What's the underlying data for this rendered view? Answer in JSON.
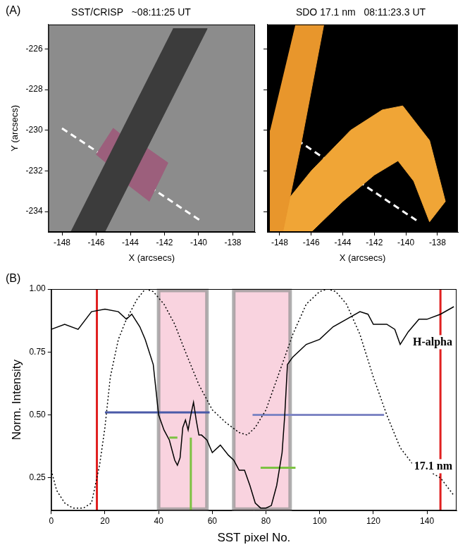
{
  "chart_data": [
    {
      "type": "image",
      "panel": "(A)",
      "title": "SST/CRISP   ~08:11:25 UT",
      "xlabel": "X (arcsecs)",
      "ylabel": "Y (arcsecs)",
      "color": "#8c8c8c",
      "xlim": [
        -148.8,
        -136.7
      ],
      "ylim": [
        -235,
        -224.8
      ],
      "xticks": [
        -148,
        -146,
        -144,
        -142,
        -140,
        -138
      ],
      "yticks": [
        -234,
        -232,
        -230,
        -228,
        -226
      ],
      "series": [
        {
          "type": "area",
          "color": "#3c3c3c",
          "x": [
            -147.5,
            -145.5,
            -139.5,
            -141.5
          ],
          "values": [
            -235,
            -235,
            -225,
            -225
          ]
        },
        {
          "type": "area",
          "color": "#9c5f7c",
          "x": [
            -146.0,
            -145.0,
            -143.4,
            -144.3
          ],
          "values": [
            -231.2,
            -229.9,
            -231.0,
            -232.4
          ]
        },
        {
          "type": "area",
          "color": "#9c5f7c",
          "x": [
            -144.6,
            -143.5,
            -141.8,
            -142.9
          ],
          "values": [
            -232.4,
            -230.6,
            -231.6,
            -233.5
          ]
        },
        {
          "type": "line",
          "line_style": "dashed",
          "color": "#ffffff",
          "x": [
            -148,
            -139.8
          ],
          "values": [
            -229.9,
            -234.5
          ]
        }
      ]
    },
    {
      "type": "image",
      "title": "SDO 17.1 nm   08:11:23.3 UT",
      "xlabel": "X (arcsecs)",
      "color": "#000000",
      "tick_labels": "x",
      "xlim": [
        -148.8,
        -136.7
      ],
      "ylim": [
        -235,
        -224.8
      ],
      "xticks": [
        -148,
        -146,
        -144,
        -142,
        -140,
        -138
      ],
      "yticks": [
        -234,
        -232,
        -230,
        -228,
        -226
      ],
      "series": [
        {
          "type": "area",
          "color": "#e8962c",
          "x": [
            -147.0,
            -145.2,
            -146.6,
            -147.8,
            -148.6,
            -148.6
          ],
          "values": [
            -224.8,
            -224.8,
            -230.5,
            -235,
            -235,
            -230
          ]
        },
        {
          "type": "area",
          "color": "#f0a536",
          "x": [
            -148.6,
            -146,
            -143.5,
            -141.5,
            -140.2,
            -138.5,
            -137.5,
            -138.5,
            -139.5,
            -140.5,
            -142,
            -144,
            -146,
            -148.6
          ],
          "values": [
            -234.5,
            -232,
            -230,
            -229,
            -228.8,
            -230.5,
            -233.5,
            -234.5,
            -232.5,
            -231.5,
            -232.2,
            -233.5,
            -235,
            -235
          ]
        },
        {
          "type": "line",
          "line_style": "dashed",
          "color": "#ffffff",
          "x": [
            -148,
            -139.2
          ],
          "values": [
            -229.9,
            -234.5
          ]
        }
      ]
    },
    {
      "type": "line",
      "panel": "(B)",
      "xlabel": "SST pixel No.",
      "ylabel": "Norm. Intensity",
      "xlim": [
        0,
        151
      ],
      "ylim": [
        0.12,
        1.0
      ],
      "xticks": [
        0,
        20,
        40,
        60,
        80,
        100,
        120,
        140
      ],
      "yticks": [
        0.25,
        {
          "value": 0.5,
          "label": "0.50"
        },
        0.75,
        {
          "value": 1.0,
          "label": "1.00"
        }
      ],
      "shaded_ranges": [
        {
          "from": 40,
          "to": 58,
          "color": "#f9d3df"
        },
        {
          "from": 68,
          "to": 89,
          "color": "#f9d3df"
        }
      ],
      "series": [
        {
          "name": "H-alpha",
          "color": "#000000",
          "line_style": "solid",
          "x": [
            0,
            5,
            10,
            15,
            20,
            25,
            28,
            30,
            33,
            35,
            38,
            40,
            42,
            44,
            46,
            47,
            48,
            49,
            50,
            51,
            52,
            53,
            54,
            55,
            56,
            58,
            60,
            63,
            66,
            68,
            70,
            72,
            74,
            76,
            78,
            80,
            82,
            84,
            86,
            87,
            88,
            90,
            93,
            95,
            100,
            105,
            110,
            115,
            118,
            120,
            125,
            128,
            130,
            133,
            137,
            140,
            145,
            150
          ],
          "values": [
            0.84,
            0.86,
            0.84,
            0.91,
            0.92,
            0.91,
            0.88,
            0.9,
            0.85,
            0.8,
            0.7,
            0.5,
            0.44,
            0.4,
            0.32,
            0.3,
            0.33,
            0.45,
            0.48,
            0.44,
            0.5,
            0.55,
            0.48,
            0.42,
            0.42,
            0.4,
            0.35,
            0.38,
            0.34,
            0.32,
            0.28,
            0.28,
            0.22,
            0.15,
            0.13,
            0.13,
            0.14,
            0.22,
            0.35,
            0.5,
            0.7,
            0.73,
            0.76,
            0.78,
            0.8,
            0.85,
            0.88,
            0.91,
            0.9,
            0.86,
            0.86,
            0.84,
            0.78,
            0.83,
            0.88,
            0.88,
            0.9,
            0.93
          ]
        },
        {
          "name": "17.1 nm",
          "color": "#000000",
          "line_style": "dotted",
          "x": [
            0,
            2,
            5,
            8,
            12,
            15,
            18,
            20,
            22,
            25,
            28,
            32,
            35,
            38,
            42,
            46,
            50,
            55,
            60,
            65,
            70,
            73,
            76,
            80,
            85,
            90,
            95,
            100,
            103,
            106,
            110,
            115,
            120,
            125,
            130,
            135,
            140,
            145,
            150
          ],
          "values": [
            0.28,
            0.2,
            0.15,
            0.13,
            0.13,
            0.15,
            0.3,
            0.45,
            0.65,
            0.8,
            0.88,
            0.96,
            1.0,
            0.99,
            0.94,
            0.86,
            0.75,
            0.62,
            0.52,
            0.47,
            0.43,
            0.42,
            0.45,
            0.52,
            0.67,
            0.82,
            0.94,
            0.99,
            1.0,
            0.99,
            0.94,
            0.82,
            0.65,
            0.5,
            0.37,
            0.3,
            0.28,
            0.25,
            0.18
          ]
        }
      ],
      "lines": [
        {
          "color": "#e02020",
          "x": [
            17,
            17
          ],
          "values": [
            0.12,
            1.0
          ]
        },
        {
          "color": "#e02020",
          "x": [
            145,
            145
          ],
          "values": [
            0.12,
            1.0
          ]
        },
        {
          "color": "#4a5aa8",
          "x": [
            20,
            59
          ],
          "values": [
            0.51,
            0.51
          ]
        },
        {
          "color": "#7f86c4",
          "x": [
            75,
            124
          ],
          "values": [
            0.5,
            0.5
          ]
        },
        {
          "color": "#7cc242",
          "x": [
            44,
            47
          ],
          "values": [
            0.41,
            0.41
          ]
        },
        {
          "color": "#7cc242",
          "x": [
            52,
            52
          ],
          "values": [
            0.12,
            0.41
          ]
        },
        {
          "color": "#7cc242",
          "x": [
            78,
            91
          ],
          "values": [
            0.29,
            0.29
          ]
        }
      ]
    }
  ]
}
